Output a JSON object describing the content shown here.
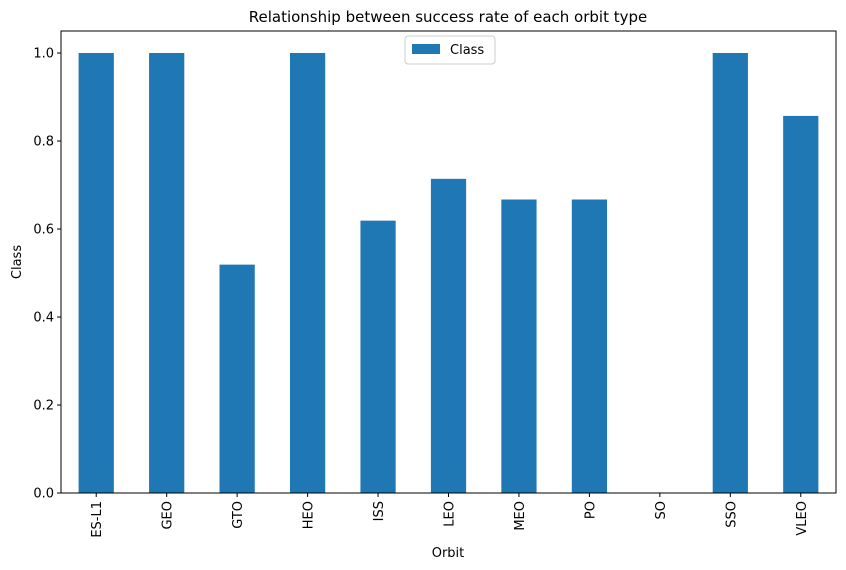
{
  "chart_data": {
    "type": "bar",
    "title": "Relationship between success rate of each orbit type",
    "xlabel": "Orbit",
    "ylabel": "Class",
    "categories": [
      "ES-L1",
      "GEO",
      "GTO",
      "HEO",
      "ISS",
      "LEO",
      "MEO",
      "PO",
      "SO",
      "SSO",
      "VLEO"
    ],
    "series": [
      {
        "name": "Class",
        "values": [
          1.0,
          1.0,
          0.519,
          1.0,
          0.619,
          0.714,
          0.667,
          0.667,
          0.0,
          1.0,
          0.857
        ],
        "color": "#1f77b4"
      }
    ],
    "ylim": [
      0,
      1.05
    ],
    "yticks": [
      "0.0",
      "0.2",
      "0.4",
      "0.6",
      "0.8",
      "1.0"
    ],
    "grid": false,
    "legend_position": "top-center",
    "x_tick_rotation": "vertical"
  }
}
